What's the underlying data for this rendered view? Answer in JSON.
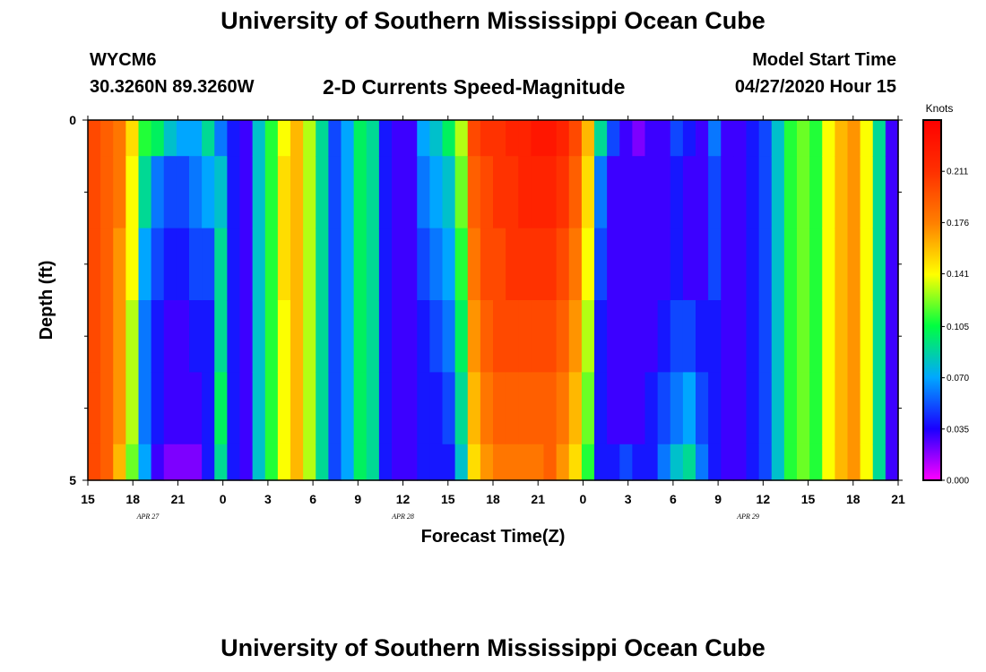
{
  "header": {
    "title": "University of Southern Mississippi Ocean Cube",
    "station_id": "WYCM6",
    "station_location": "30.3260N 89.3260W",
    "plot_title": "2-D Currents Speed-Magnitude",
    "model_start_label": "Model Start Time",
    "model_start_value": "04/27/2020 Hour 15"
  },
  "footer": {
    "title": "University of Southern Mississippi Ocean Cube"
  },
  "chart_data": {
    "type": "heatmap",
    "title": "2-D Currents Speed-Magnitude",
    "xlabel": "Forecast Time(Z)",
    "ylabel": "Depth (ft)",
    "x_tick_labels": [
      "15",
      "18",
      "21",
      "0",
      "3",
      "6",
      "9",
      "12",
      "15",
      "18",
      "21",
      "0",
      "3",
      "6",
      "9",
      "12",
      "15",
      "18",
      "21"
    ],
    "x_tick_hours": [
      0,
      3,
      6,
      9,
      12,
      15,
      18,
      21,
      24,
      27,
      30,
      33,
      36,
      39,
      42,
      45,
      48,
      51,
      54
    ],
    "date_labels": [
      {
        "label": "APR  27",
        "hour": 4
      },
      {
        "label": "APR  28",
        "hour": 21
      },
      {
        "label": "APR  29",
        "hour": 44
      }
    ],
    "x_range": [
      0,
      54
    ],
    "y_range": [
      0,
      5
    ],
    "y_tick_labels": [
      "0",
      "5"
    ],
    "y_minor_ticks": [
      1,
      2,
      3,
      4
    ],
    "depth_bands": [
      0,
      0.5,
      1.5,
      2.5,
      3.5,
      4.5,
      5
    ],
    "colorbar": {
      "unit": "Knots",
      "range": [
        0.0,
        0.246
      ],
      "tick_labels": [
        "0.211",
        "0.176",
        "0.141",
        "0.105",
        "0.070",
        "0.035",
        "0.000"
      ],
      "tick_values": [
        0.211,
        0.176,
        0.141,
        0.105,
        0.07,
        0.035,
        0.0
      ]
    },
    "speed_knots_by_column": [
      [
        0.2,
        0.2,
        0.2,
        0.2,
        0.2,
        0.2
      ],
      [
        0.19,
        0.19,
        0.19,
        0.19,
        0.19,
        0.19
      ],
      [
        0.18,
        0.18,
        0.17,
        0.17,
        0.17,
        0.16
      ],
      [
        0.15,
        0.14,
        0.14,
        0.13,
        0.13,
        0.12
      ],
      [
        0.11,
        0.09,
        0.07,
        0.06,
        0.06,
        0.07
      ],
      [
        0.1,
        0.06,
        0.05,
        0.04,
        0.04,
        0.03
      ],
      [
        0.08,
        0.05,
        0.04,
        0.03,
        0.03,
        0.02
      ],
      [
        0.07,
        0.05,
        0.04,
        0.03,
        0.03,
        0.02
      ],
      [
        0.07,
        0.06,
        0.05,
        0.04,
        0.03,
        0.02
      ],
      [
        0.09,
        0.07,
        0.05,
        0.04,
        0.04,
        0.04
      ],
      [
        0.06,
        0.08,
        0.09,
        0.09,
        0.1,
        0.09
      ],
      [
        0.04,
        0.04,
        0.04,
        0.04,
        0.04,
        0.04
      ],
      [
        0.03,
        0.03,
        0.03,
        0.03,
        0.03,
        0.03
      ],
      [
        0.08,
        0.08,
        0.08,
        0.08,
        0.08,
        0.08
      ],
      [
        0.11,
        0.11,
        0.11,
        0.11,
        0.11,
        0.11
      ],
      [
        0.14,
        0.15,
        0.15,
        0.14,
        0.14,
        0.14
      ],
      [
        0.16,
        0.16,
        0.16,
        0.16,
        0.16,
        0.16
      ],
      [
        0.13,
        0.13,
        0.13,
        0.13,
        0.13,
        0.13
      ],
      [
        0.09,
        0.09,
        0.09,
        0.09,
        0.09,
        0.09
      ],
      [
        0.05,
        0.05,
        0.05,
        0.05,
        0.05,
        0.05
      ],
      [
        0.07,
        0.07,
        0.07,
        0.07,
        0.07,
        0.07
      ],
      [
        0.1,
        0.1,
        0.1,
        0.1,
        0.1,
        0.1
      ],
      [
        0.09,
        0.09,
        0.09,
        0.09,
        0.09,
        0.09
      ],
      [
        0.04,
        0.04,
        0.04,
        0.04,
        0.04,
        0.04
      ],
      [
        0.03,
        0.03,
        0.03,
        0.03,
        0.03,
        0.03
      ],
      [
        0.03,
        0.03,
        0.03,
        0.03,
        0.03,
        0.03
      ],
      [
        0.07,
        0.06,
        0.05,
        0.04,
        0.04,
        0.04
      ],
      [
        0.08,
        0.07,
        0.06,
        0.05,
        0.04,
        0.04
      ],
      [
        0.1,
        0.08,
        0.07,
        0.06,
        0.05,
        0.04
      ],
      [
        0.13,
        0.12,
        0.11,
        0.1,
        0.09,
        0.08
      ],
      [
        0.2,
        0.19,
        0.18,
        0.17,
        0.16,
        0.15
      ],
      [
        0.21,
        0.2,
        0.2,
        0.19,
        0.18,
        0.17
      ],
      [
        0.21,
        0.21,
        0.2,
        0.2,
        0.19,
        0.18
      ],
      [
        0.22,
        0.21,
        0.21,
        0.2,
        0.19,
        0.18
      ],
      [
        0.22,
        0.22,
        0.21,
        0.2,
        0.19,
        0.18
      ],
      [
        0.23,
        0.22,
        0.21,
        0.2,
        0.19,
        0.18
      ],
      [
        0.23,
        0.22,
        0.21,
        0.2,
        0.19,
        0.19
      ],
      [
        0.22,
        0.21,
        0.2,
        0.19,
        0.18,
        0.17
      ],
      [
        0.2,
        0.19,
        0.18,
        0.17,
        0.16,
        0.15
      ],
      [
        0.16,
        0.15,
        0.14,
        0.13,
        0.12,
        0.11
      ],
      [
        0.09,
        0.06,
        0.05,
        0.04,
        0.04,
        0.04
      ],
      [
        0.05,
        0.03,
        0.03,
        0.03,
        0.03,
        0.04
      ],
      [
        0.03,
        0.03,
        0.03,
        0.03,
        0.03,
        0.05
      ],
      [
        0.02,
        0.03,
        0.03,
        0.03,
        0.03,
        0.04
      ],
      [
        0.03,
        0.03,
        0.03,
        0.03,
        0.04,
        0.04
      ],
      [
        0.03,
        0.03,
        0.03,
        0.04,
        0.05,
        0.06
      ],
      [
        0.05,
        0.04,
        0.04,
        0.05,
        0.06,
        0.08
      ],
      [
        0.04,
        0.03,
        0.03,
        0.05,
        0.07,
        0.09
      ],
      [
        0.03,
        0.03,
        0.03,
        0.04,
        0.05,
        0.06
      ],
      [
        0.06,
        0.05,
        0.05,
        0.04,
        0.04,
        0.04
      ],
      [
        0.03,
        0.03,
        0.03,
        0.03,
        0.03,
        0.03
      ],
      [
        0.03,
        0.03,
        0.03,
        0.03,
        0.03,
        0.03
      ],
      [
        0.04,
        0.04,
        0.04,
        0.04,
        0.04,
        0.04
      ],
      [
        0.05,
        0.05,
        0.05,
        0.05,
        0.05,
        0.05
      ],
      [
        0.08,
        0.08,
        0.08,
        0.08,
        0.08,
        0.08
      ],
      [
        0.11,
        0.11,
        0.11,
        0.11,
        0.11,
        0.11
      ],
      [
        0.12,
        0.12,
        0.12,
        0.12,
        0.12,
        0.12
      ],
      [
        0.11,
        0.11,
        0.11,
        0.11,
        0.11,
        0.11
      ],
      [
        0.14,
        0.14,
        0.14,
        0.14,
        0.14,
        0.14
      ],
      [
        0.16,
        0.16,
        0.16,
        0.16,
        0.16,
        0.16
      ],
      [
        0.17,
        0.17,
        0.17,
        0.17,
        0.17,
        0.17
      ],
      [
        0.14,
        0.14,
        0.14,
        0.14,
        0.14,
        0.14
      ],
      [
        0.09,
        0.09,
        0.09,
        0.09,
        0.09,
        0.09
      ],
      [
        0.03,
        0.03,
        0.03,
        0.03,
        0.03,
        0.03
      ]
    ]
  }
}
